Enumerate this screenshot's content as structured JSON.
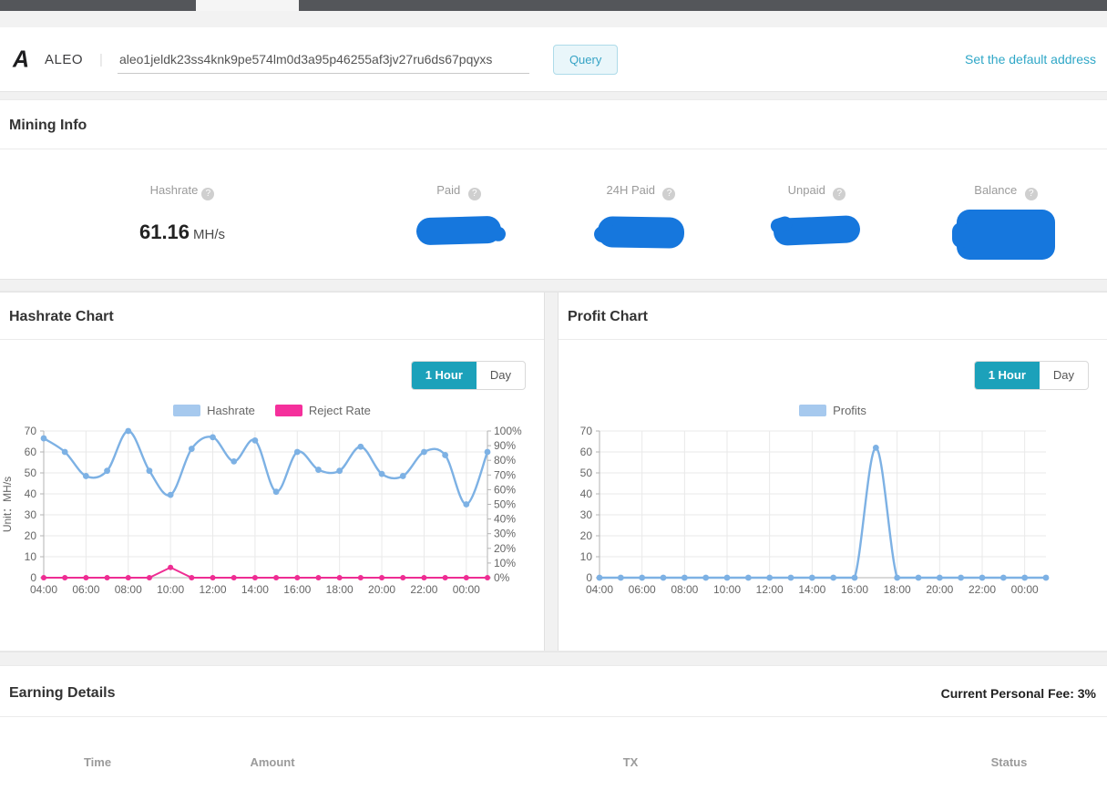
{
  "query_bar": {
    "logo_glyph": "A",
    "coin": "ALEO",
    "divider": "|",
    "address_value": "aleo1jeldk23ss4knk9pe574lm0d3a95p46255af3jv27ru6ds67pqyxs",
    "query_label": "Query",
    "set_default_label": "Set the default address"
  },
  "mining_info": {
    "title": "Mining Info",
    "stats": [
      {
        "label": "Hashrate",
        "value": "61.16",
        "unit": "MH/s",
        "redacted": false
      },
      {
        "label": "Paid",
        "redacted": true
      },
      {
        "label": "24H Paid",
        "redacted": true
      },
      {
        "label": "Unpaid",
        "redacted": true
      },
      {
        "label": "Balance",
        "redacted": true
      }
    ]
  },
  "panels": {
    "toggle": {
      "hour": "1 Hour",
      "day": "Day",
      "active": "1 Hour"
    }
  },
  "earning_details": {
    "title": "Earning Details",
    "fee_text": "Current Personal Fee: 3%",
    "columns": [
      "Time",
      "Amount",
      "TX",
      "Status"
    ]
  },
  "colors": {
    "accent_teal": "#1ca1ba",
    "link_teal": "#2fa7c7",
    "line_blue": "#7db1e4",
    "line_pink": "#ee2d93",
    "redaction_blue": "#1677dd",
    "grid": "#e9e9e9",
    "axis": "#b3b3b3"
  },
  "chart_data": [
    {
      "type": "line",
      "title": "Hashrate Chart",
      "x": [
        "04:00",
        "05:00",
        "06:00",
        "07:00",
        "08:00",
        "09:00",
        "10:00",
        "11:00",
        "12:00",
        "13:00",
        "14:00",
        "15:00",
        "16:00",
        "17:00",
        "18:00",
        "19:00",
        "20:00",
        "21:00",
        "22:00",
        "23:00",
        "00:00",
        "01:00"
      ],
      "x_tick_labels": [
        "04:00",
        "06:00",
        "08:00",
        "10:00",
        "12:00",
        "14:00",
        "16:00",
        "18:00",
        "20:00",
        "22:00",
        "00:00"
      ],
      "ylabel": "Unit：MH/s",
      "ylim": [
        0,
        70
      ],
      "y_ticks": [
        0,
        10,
        20,
        30,
        40,
        50,
        60,
        70
      ],
      "y2lim": [
        0,
        100
      ],
      "y2_ticks": [
        "0%",
        "10%",
        "20%",
        "30%",
        "40%",
        "50%",
        "60%",
        "70%",
        "80%",
        "90%",
        "100%"
      ],
      "grid": true,
      "legend_position": "top",
      "series": [
        {
          "name": "Hashrate",
          "axis": "left",
          "color": "#7db1e4",
          "legend_color": "#a6c9ee",
          "smooth": true,
          "marker_r": 3.4,
          "width": 2.4,
          "values": [
            66.5,
            60,
            48.5,
            51,
            70,
            51,
            39.5,
            61.5,
            67,
            55.5,
            65.5,
            41,
            60,
            51.5,
            51,
            62.5,
            49.5,
            48.5,
            60,
            58.5,
            35,
            60
          ]
        },
        {
          "name": "Reject Rate",
          "axis": "right",
          "color": "#ee2d93",
          "legend_color": "#f5309c",
          "smooth": false,
          "marker_r": 3,
          "width": 2,
          "values": [
            0,
            0,
            0,
            0,
            0,
            0,
            7,
            0,
            0,
            0,
            0,
            0,
            0,
            0,
            0,
            0,
            0,
            0,
            0,
            0,
            0,
            0
          ]
        }
      ]
    },
    {
      "type": "line",
      "title": "Profit Chart",
      "x": [
        "04:00",
        "05:00",
        "06:00",
        "07:00",
        "08:00",
        "09:00",
        "10:00",
        "11:00",
        "12:00",
        "13:00",
        "14:00",
        "15:00",
        "16:00",
        "17:00",
        "18:00",
        "19:00",
        "20:00",
        "21:00",
        "22:00",
        "23:00",
        "00:00",
        "01:00"
      ],
      "x_tick_labels": [
        "04:00",
        "06:00",
        "08:00",
        "10:00",
        "12:00",
        "14:00",
        "16:00",
        "18:00",
        "20:00",
        "22:00",
        "00:00"
      ],
      "ylabel": "",
      "ylim": [
        0,
        70
      ],
      "y_ticks": [
        0,
        10,
        20,
        30,
        40,
        50,
        60,
        70
      ],
      "grid": true,
      "legend_position": "top",
      "series": [
        {
          "name": "Profits",
          "axis": "left",
          "color": "#7db1e4",
          "legend_color": "#a6c9ee",
          "smooth": true,
          "marker_r": 3.4,
          "width": 2.4,
          "values": [
            0,
            0,
            0,
            0,
            0,
            0,
            0,
            0,
            0,
            0,
            0,
            0,
            0,
            62,
            0,
            0,
            0,
            0,
            0,
            0,
            0,
            0
          ]
        }
      ]
    }
  ]
}
